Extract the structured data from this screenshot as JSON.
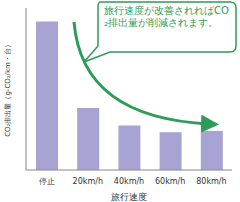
{
  "chart_data": {
    "type": "bar",
    "categories": [
      "停止",
      "20km/h",
      "40km/h",
      "60km/h",
      "80km/h"
    ],
    "values": [
      550,
      230,
      165,
      140,
      145
    ],
    "color": "#a7a3d3",
    "ylim": [
      0,
      600
    ],
    "tick_labels": "x",
    "grid": false,
    "x_label": "旅行速度",
    "y_label": "CO₂排出量（g-CO₂/km・台）",
    "annotation": "旅行速度が改善されればCO₂排出量が削減されます。"
  }
}
